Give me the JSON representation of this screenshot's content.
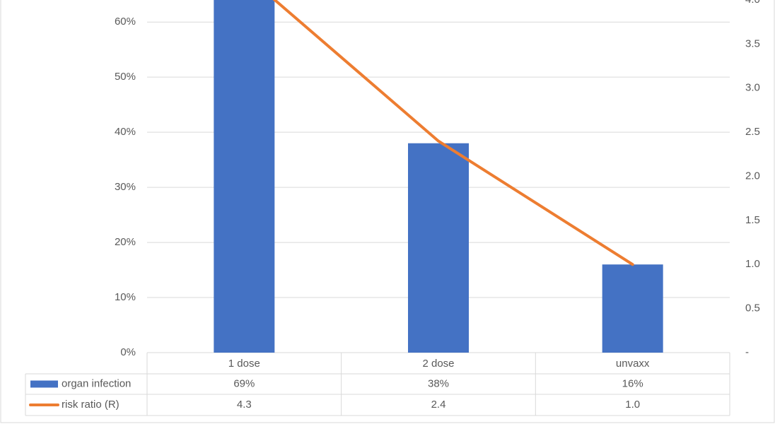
{
  "chart_data": {
    "type": "bar",
    "categories": [
      "1 dose",
      "2 dose",
      "unvaxx"
    ],
    "series": [
      {
        "name": "organ infection",
        "color": "#4472c4",
        "values": [
          69,
          38,
          16
        ],
        "value_labels": [
          "69%",
          "38%",
          "16%"
        ]
      },
      {
        "name": "risk ratio (R)",
        "color": "#ed7d31",
        "type": "line",
        "axis": "y2",
        "values": [
          4.3,
          2.4,
          1.0
        ],
        "value_labels": [
          "4.3",
          "2.4",
          "1.0"
        ]
      }
    ],
    "ylim": [
      0,
      64
    ],
    "yticks": [
      {
        "value": 0,
        "label": "0%"
      },
      {
        "value": 10,
        "label": "10%"
      },
      {
        "value": 20,
        "label": "20%"
      },
      {
        "value": 30,
        "label": "30%"
      },
      {
        "value": 40,
        "label": "40%"
      },
      {
        "value": 50,
        "label": "50%"
      },
      {
        "value": 60,
        "label": "60%"
      }
    ],
    "y2lim": [
      0,
      4
    ],
    "y2ticks": [
      {
        "value": 0,
        "label": "-"
      },
      0.5,
      {
        "value": 1,
        "label": "1.0"
      },
      1.5,
      {
        "value": 2,
        "label": "2.0"
      },
      2.5,
      {
        "value": 3,
        "label": "3.0"
      },
      3.5,
      {
        "value": 4,
        "label": "4.0"
      }
    ],
    "grid": true,
    "legend": "data-table"
  }
}
